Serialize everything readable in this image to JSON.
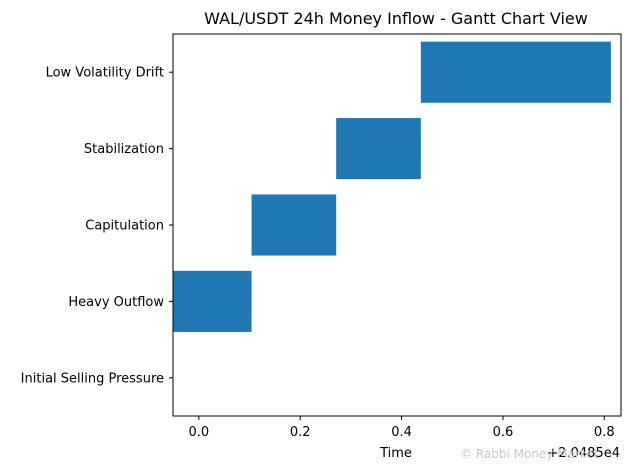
{
  "chart_data": {
    "type": "bar",
    "orientation": "horizontal",
    "title": "WAL/USDT 24h Money Inflow - Gantt Chart View",
    "xlabel": "Time",
    "ylabel": "",
    "x_offset_label": "+2.0485e4",
    "x_offset": 20485,
    "xlim": [
      20484.949,
      20485.833
    ],
    "x_ticks": [
      20485.0,
      20485.2,
      20485.4,
      20485.6,
      20485.8
    ],
    "x_tick_labels": [
      "0.0",
      "0.2",
      "0.4",
      "0.6",
      "0.8"
    ],
    "categories": [
      "Initial Selling Pressure",
      "Heavy Outflow",
      "Capitulation",
      "Stabilization",
      "Low Volatility Drift"
    ],
    "tasks": [
      {
        "category": "Initial Selling Pressure",
        "start": null,
        "end": null
      },
      {
        "category": "Heavy Outflow",
        "start": 20484.94,
        "end": 20485.104
      },
      {
        "category": "Capitulation",
        "start": 20485.104,
        "end": 20485.271
      },
      {
        "category": "Stabilization",
        "start": 20485.271,
        "end": 20485.438
      },
      {
        "category": "Low Volatility Drift",
        "start": 20485.438,
        "end": 20485.813
      }
    ],
    "color": "#1f77b4",
    "grid": false,
    "legend": "none"
  },
  "watermark": "© Rabbi Money Market"
}
